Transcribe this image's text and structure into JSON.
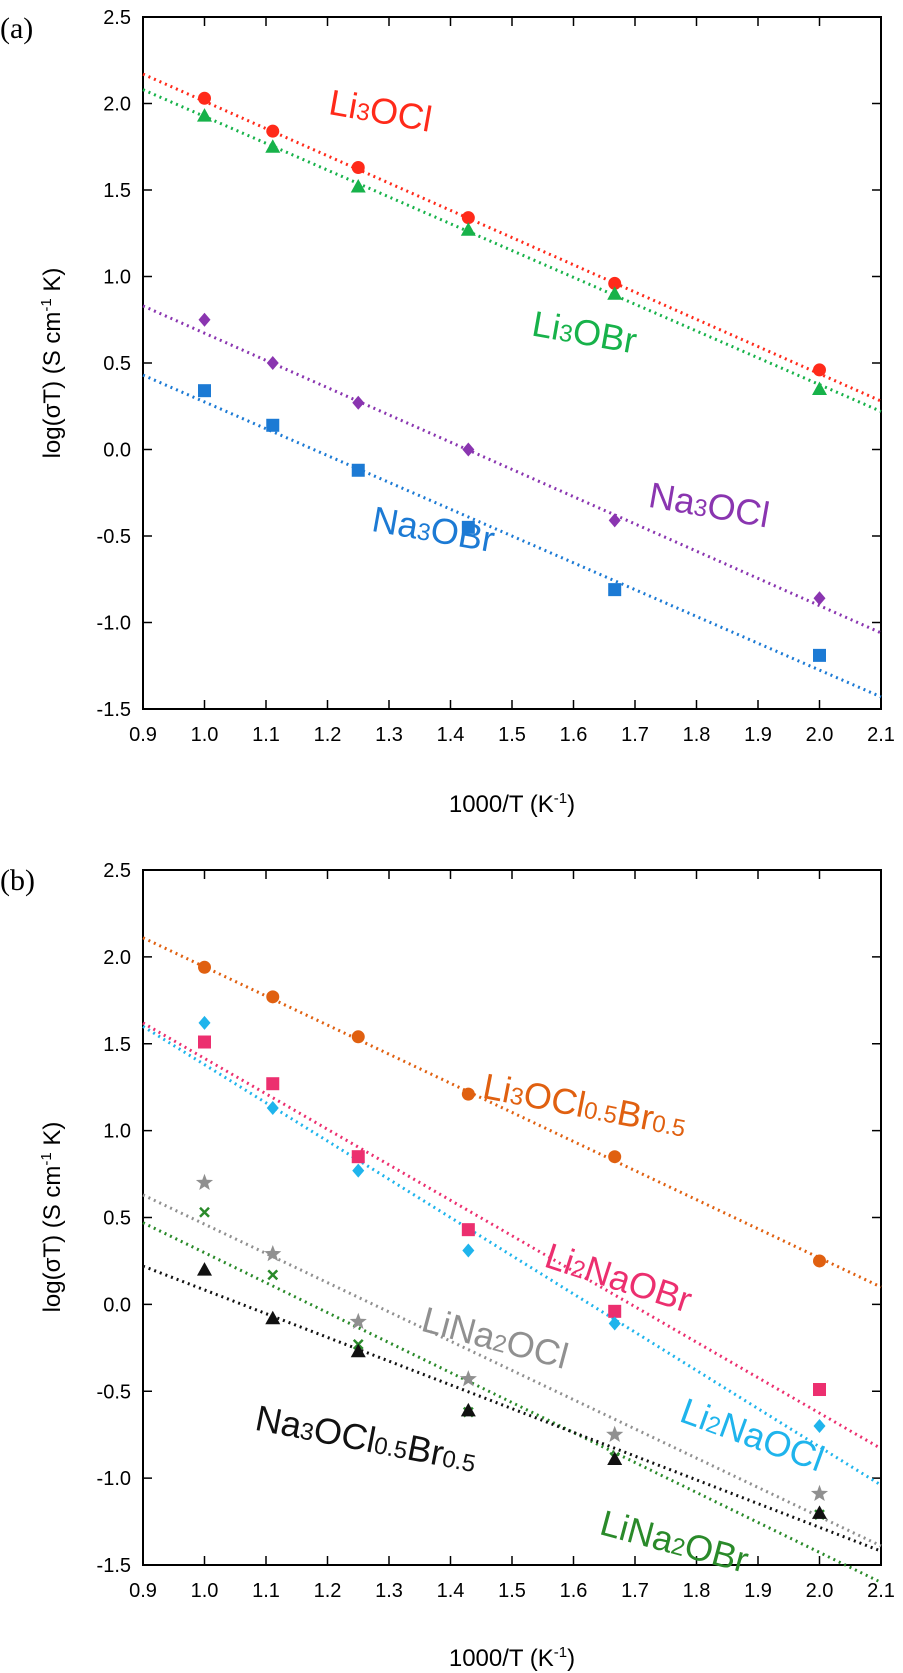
{
  "chart_data": [
    {
      "type": "scatter",
      "panel_label": "(a)",
      "xlabel": "1000/T (K",
      "xlabel_sup": "-1",
      "xlabel_end": ")",
      "ylabel": "log(σT) (S cm",
      "ylabel_sup": "-1",
      "ylabel_end": " K)",
      "xlim": [
        0.9,
        2.1
      ],
      "ylim": [
        -1.5,
        2.5
      ],
      "xticks": [
        "0.9",
        "1.0",
        "1.1",
        "1.2",
        "1.3",
        "1.4",
        "1.5",
        "1.6",
        "1.7",
        "1.8",
        "1.9",
        "2.0",
        "2.1"
      ],
      "yticks": [
        "2.5",
        "2.0",
        "1.5",
        "1.0",
        "0.5",
        "0.0",
        "-0.5",
        "-1.0",
        "-1.5"
      ],
      "grid": false,
      "legend": "inline labels",
      "series": [
        {
          "label_parts": [
            {
              "t": "Li",
              "sub": false
            },
            {
              "t": "3",
              "sub": true
            },
            {
              "t": "OCl",
              "sub": false
            }
          ],
          "color": "#ff2a1a",
          "marker": "circle",
          "x": [
            1.0,
            1.111,
            1.25,
            1.429,
            1.667,
            2.0
          ],
          "y": [
            2.03,
            1.84,
            1.63,
            1.34,
            0.96,
            0.46
          ],
          "fit": [
            [
              0.9,
              2.17
            ],
            [
              2.1,
              0.28
            ]
          ],
          "label_x": 1.2,
          "label_y": 1.94,
          "label_rot": 10
        },
        {
          "label_parts": [
            {
              "t": "Li",
              "sub": false
            },
            {
              "t": "3",
              "sub": true
            },
            {
              "t": "OBr",
              "sub": false
            }
          ],
          "color": "#17b24a",
          "marker": "triangle",
          "x": [
            1.0,
            1.111,
            1.25,
            1.429,
            1.667,
            2.0
          ],
          "y": [
            1.93,
            1.75,
            1.52,
            1.27,
            0.9,
            0.35
          ],
          "fit": [
            [
              0.9,
              2.08
            ],
            [
              2.1,
              0.22
            ]
          ],
          "label_x": 1.53,
          "label_y": 0.66,
          "label_rot": 10
        },
        {
          "label_parts": [
            {
              "t": "Na",
              "sub": false
            },
            {
              "t": "3",
              "sub": true
            },
            {
              "t": "OCl",
              "sub": false
            }
          ],
          "color": "#8a35b0",
          "marker": "diamond",
          "x": [
            1.0,
            1.111,
            1.25,
            1.429,
            1.667,
            2.0
          ],
          "y": [
            0.75,
            0.5,
            0.27,
            0.0,
            -0.41,
            -0.86
          ],
          "fit": [
            [
              0.9,
              0.83
            ],
            [
              2.1,
              -1.06
            ]
          ],
          "label_x": 1.72,
          "label_y": -0.33,
          "label_rot": 10
        },
        {
          "label_parts": [
            {
              "t": "Na",
              "sub": false
            },
            {
              "t": "3",
              "sub": true
            },
            {
              "t": "OBr",
              "sub": false
            }
          ],
          "color": "#1c7ad4",
          "marker": "square",
          "x": [
            1.0,
            1.111,
            1.25,
            1.429,
            1.667,
            2.0
          ],
          "y": [
            0.34,
            0.14,
            -0.12,
            -0.45,
            -0.81,
            -1.19
          ],
          "fit": [
            [
              0.9,
              0.43
            ],
            [
              2.1,
              -1.43
            ]
          ],
          "label_x": 1.27,
          "label_y": -0.47,
          "label_rot": 10
        }
      ]
    },
    {
      "type": "scatter",
      "panel_label": "(b)",
      "xlabel": "1000/T (K",
      "xlabel_sup": "-1",
      "xlabel_end": ")",
      "ylabel": "log(σT) (S cm",
      "ylabel_sup": "-1",
      "ylabel_end": " K)",
      "xlim": [
        0.9,
        2.1
      ],
      "ylim": [
        -1.5,
        2.5
      ],
      "xticks": [
        "0.9",
        "1.0",
        "1.1",
        "1.2",
        "1.3",
        "1.4",
        "1.5",
        "1.6",
        "1.7",
        "1.8",
        "1.9",
        "2.0",
        "2.1"
      ],
      "yticks": [
        "2.5",
        "2.0",
        "1.5",
        "1.0",
        "0.5",
        "0.0",
        "-0.5",
        "-1.0",
        "-1.5"
      ],
      "grid": false,
      "legend": "inline labels",
      "series": [
        {
          "label_parts": [
            {
              "t": "Li",
              "sub": false
            },
            {
              "t": "3",
              "sub": true
            },
            {
              "t": "OCl",
              "sub": false
            },
            {
              "t": "0.5",
              "sub": true
            },
            {
              "t": "Br",
              "sub": false
            },
            {
              "t": "0.5",
              "sub": true
            }
          ],
          "color": "#e06010",
          "marker": "circle",
          "x": [
            1.0,
            1.111,
            1.25,
            1.429,
            1.667,
            2.0
          ],
          "y": [
            1.94,
            1.77,
            1.54,
            1.21,
            0.85,
            0.25
          ],
          "fit": [
            [
              0.9,
              2.11
            ],
            [
              2.1,
              0.1
            ]
          ],
          "label_x": 1.45,
          "label_y": 1.19,
          "label_rot": 11
        },
        {
          "label_parts": [
            {
              "t": "Li",
              "sub": false
            },
            {
              "t": "2",
              "sub": true
            },
            {
              "t": "NaOBr",
              "sub": false
            }
          ],
          "color": "#ec2f6f",
          "marker": "square",
          "x": [
            1.0,
            1.111,
            1.25,
            1.429,
            1.667,
            2.0
          ],
          "y": [
            1.51,
            1.27,
            0.85,
            0.43,
            -0.04,
            -0.49
          ],
          "fit": [
            [
              0.9,
              1.62
            ],
            [
              2.1,
              -0.83
            ]
          ],
          "label_x": 1.55,
          "label_y": 0.22,
          "label_rot": 18
        },
        {
          "label_parts": [
            {
              "t": "Li",
              "sub": false
            },
            {
              "t": "2",
              "sub": true
            },
            {
              "t": "NaOCl",
              "sub": false
            }
          ],
          "color": "#1fb4ec",
          "marker": "diamond",
          "x": [
            1.0,
            1.111,
            1.25,
            1.429,
            1.667,
            2.0
          ],
          "y": [
            1.62,
            1.13,
            0.77,
            0.31,
            -0.11,
            -0.7
          ],
          "fit": [
            [
              0.9,
              1.6
            ],
            [
              2.1,
              -1.04
            ]
          ],
          "label_x": 1.77,
          "label_y": -0.67,
          "label_rot": 20
        },
        {
          "label_parts": [
            {
              "t": "LiNa",
              "sub": false
            },
            {
              "t": "2",
              "sub": true
            },
            {
              "t": "OCl",
              "sub": false
            }
          ],
          "color": "#909090",
          "marker": "star",
          "x": [
            1.0,
            1.111,
            1.25,
            1.429,
            1.667,
            2.0
          ],
          "y": [
            0.7,
            0.29,
            -0.1,
            -0.43,
            -0.75,
            -1.09
          ],
          "fit": [
            [
              0.9,
              0.63
            ],
            [
              2.1,
              -1.39
            ]
          ],
          "label_x": 1.35,
          "label_y": -0.15,
          "label_rot": 15
        },
        {
          "label_parts": [
            {
              "t": "LiNa",
              "sub": false
            },
            {
              "t": "2",
              "sub": true
            },
            {
              "t": "OBr",
              "sub": false
            }
          ],
          "color": "#2a8a2a",
          "marker": "cross",
          "x": [
            1.0,
            1.111,
            1.25,
            1.429,
            1.667,
            2.0
          ],
          "y": [
            0.53,
            0.17,
            -0.23,
            -0.62,
            -0.88,
            -1.21
          ],
          "fit": [
            [
              0.9,
              0.47
            ],
            [
              2.1,
              -1.6
            ]
          ],
          "label_x": 1.64,
          "label_y": -1.32,
          "label_rot": 15
        },
        {
          "label_parts": [
            {
              "t": "Na",
              "sub": false
            },
            {
              "t": "3",
              "sub": true
            },
            {
              "t": "OCl",
              "sub": false
            },
            {
              "t": "0.5",
              "sub": true
            },
            {
              "t": "Br",
              "sub": false
            },
            {
              "t": "0.5",
              "sub": true
            }
          ],
          "color": "#111111",
          "marker": "triangle",
          "x": [
            1.0,
            1.111,
            1.25,
            1.429,
            1.667,
            2.0
          ],
          "y": [
            0.2,
            -0.08,
            -0.27,
            -0.61,
            -0.89,
            -1.2
          ],
          "fit": [
            [
              0.9,
              0.22
            ],
            [
              2.1,
              -1.42
            ]
          ],
          "label_x": 1.08,
          "label_y": -0.72,
          "label_rot": 11
        }
      ]
    }
  ]
}
